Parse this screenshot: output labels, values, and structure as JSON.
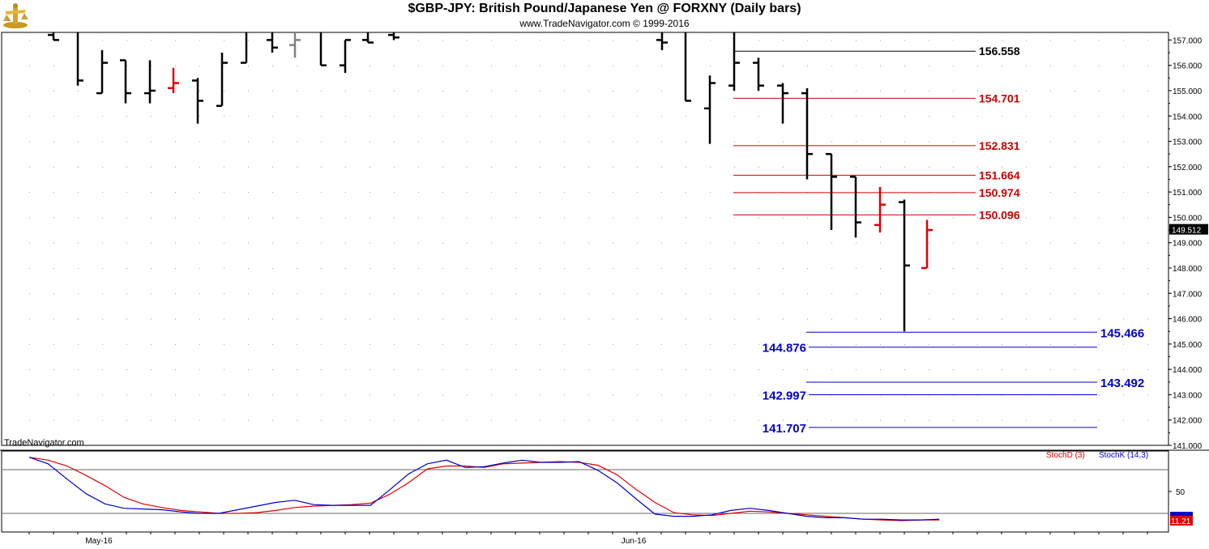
{
  "header": {
    "title": "$GBP-JPY:  British Pound/Japanese Yen @ FORXNY  (Daily bars)",
    "copyright": "www.TradeNavigator.com © 1999-2016"
  },
  "brand_label": "TradeNavigator.com",
  "colors": {
    "up": "#000000",
    "down": "#e00000",
    "neutral": "#808080",
    "support": "#0000cc",
    "resistance": "#cc0000"
  },
  "chart_data": [
    {
      "type": "ohlc",
      "title": "$GBP-JPY:  British Pound/Japanese Yen @ FORXNY  (Daily bars)",
      "ylim": [
        141,
        157.3
      ],
      "y_ticks": [
        "141.000",
        "142.000",
        "143.000",
        "144.000",
        "145.000",
        "146.000",
        "147.000",
        "148.000",
        "149.000",
        "150.000",
        "151.000",
        "152.000",
        "153.000",
        "154.000",
        "155.000",
        "156.000",
        "157.000"
      ],
      "x_labels": [
        {
          "label": "May-16",
          "index": 3
        },
        {
          "label": "Jun-16",
          "index": 25
        }
      ],
      "last_price": "149.512",
      "bars": [
        {
          "o": 157.2,
          "h": 157.5,
          "l": 157.0,
          "c": 157.0,
          "color": "up"
        },
        {
          "o": 157.5,
          "h": 157.5,
          "l": 155.2,
          "c": 155.4,
          "color": "up"
        },
        {
          "o": 154.9,
          "h": 156.6,
          "l": 154.9,
          "c": 156.1,
          "color": "up"
        },
        {
          "o": 156.2,
          "h": 156.2,
          "l": 154.5,
          "c": 154.9,
          "color": "up"
        },
        {
          "o": 154.9,
          "h": 156.2,
          "l": 154.5,
          "c": 155.0,
          "color": "up"
        },
        {
          "o": 155.1,
          "h": 155.9,
          "l": 154.9,
          "c": 155.3,
          "color": "down"
        },
        {
          "o": 155.4,
          "h": 155.5,
          "l": 153.7,
          "c": 154.6,
          "color": "up"
        },
        {
          "o": 154.4,
          "h": 156.5,
          "l": 154.4,
          "c": 156.1,
          "color": "up"
        },
        {
          "o": 156.1,
          "h": 157.5,
          "l": 156.1,
          "c": 157.5,
          "color": "up"
        },
        {
          "o": 157.0,
          "h": 157.5,
          "l": 156.5,
          "c": 156.7,
          "color": "up"
        },
        {
          "o": 156.8,
          "h": 157.5,
          "l": 156.3,
          "c": 157.0,
          "color": "neutral"
        },
        {
          "o": 157.5,
          "h": 157.5,
          "l": 156.0,
          "c": 156.0,
          "color": "up"
        },
        {
          "o": 156.0,
          "h": 157.0,
          "l": 155.7,
          "c": 157.0,
          "color": "up"
        },
        {
          "o": 157.0,
          "h": 157.5,
          "l": 156.9,
          "c": 156.9,
          "color": "up"
        },
        {
          "o": 157.2,
          "h": 157.5,
          "l": 157.0,
          "c": 157.1,
          "color": "up"
        },
        {
          "o": 157.0,
          "h": 157.5,
          "l": 156.6,
          "c": 156.9,
          "color": "up"
        },
        {
          "o": 157.5,
          "h": 157.5,
          "l": 154.6,
          "c": 154.6,
          "color": "up"
        },
        {
          "o": 154.3,
          "h": 155.6,
          "l": 152.9,
          "c": 155.3,
          "color": "up"
        },
        {
          "o": 155.2,
          "h": 157.5,
          "l": 155.0,
          "c": 156.1,
          "color": "up"
        },
        {
          "o": 156.1,
          "h": 156.3,
          "l": 155.0,
          "c": 155.2,
          "color": "up"
        },
        {
          "o": 155.2,
          "h": 155.3,
          "l": 153.7,
          "c": 154.9,
          "color": "up"
        },
        {
          "o": 154.9,
          "h": 155.1,
          "l": 151.5,
          "c": 152.5,
          "color": "up"
        },
        {
          "o": 152.5,
          "h": 152.5,
          "l": 149.5,
          "c": 151.6,
          "color": "up"
        },
        {
          "o": 151.6,
          "h": 151.6,
          "l": 149.2,
          "c": 149.8,
          "color": "up"
        },
        {
          "o": 149.7,
          "h": 151.2,
          "l": 149.4,
          "c": 150.5,
          "color": "down"
        },
        {
          "o": 150.6,
          "h": 150.7,
          "l": 145.5,
          "c": 148.1,
          "color": "up"
        },
        {
          "o": 148.0,
          "h": 149.9,
          "l": 148.0,
          "c": 149.5,
          "color": "down"
        }
      ],
      "resistance_levels": [
        "156.558",
        "154.701",
        "152.831",
        "151.664",
        "150.974",
        "150.096"
      ],
      "support_levels": [
        "145.466",
        "144.876",
        "143.492",
        "142.997",
        "141.707"
      ]
    },
    {
      "type": "line",
      "ylim": [
        0,
        100
      ],
      "y_ticks": [
        "50"
      ],
      "ref_lines": [
        80,
        20
      ],
      "series": [
        {
          "name": "StochD (3)",
          "color": "#e00000",
          "last_label": "11.21",
          "values": [
            97,
            93,
            85,
            72,
            58,
            42,
            33,
            28,
            24,
            22,
            20,
            20,
            21,
            24,
            28,
            30,
            31,
            32,
            34,
            46,
            62,
            81,
            85,
            85,
            83,
            88,
            89,
            90,
            91,
            90,
            86,
            73,
            53,
            35,
            21,
            18,
            17,
            20,
            23,
            22,
            20,
            18,
            16,
            14,
            12,
            11,
            10,
            11,
            11
          ]
        },
        {
          "name": "StochK (14,3)",
          "color": "#0000cc",
          "last_label": "",
          "values": [
            97,
            88,
            67,
            47,
            33,
            27,
            26,
            25,
            22,
            20,
            20,
            25,
            30,
            35,
            38,
            32,
            31,
            31,
            31,
            52,
            74,
            88,
            93,
            83,
            84,
            89,
            93,
            90,
            90,
            91,
            79,
            62,
            40,
            19,
            16,
            16,
            18,
            24,
            27,
            24,
            20,
            16,
            14,
            14,
            12,
            12,
            11,
            11,
            12
          ]
        }
      ]
    }
  ]
}
